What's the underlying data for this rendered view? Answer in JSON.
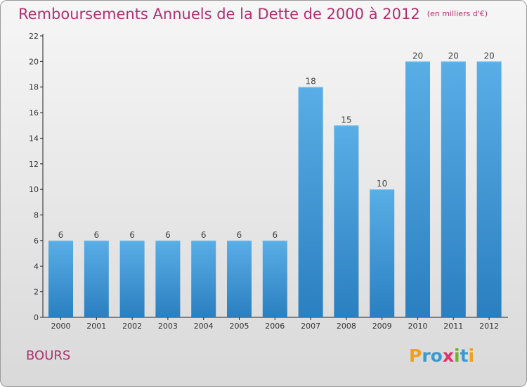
{
  "header": {
    "title": "Remboursements Annuels de la Dette de 2000 à 2012",
    "unit": "(en milliers d'€)"
  },
  "footer": {
    "commune": "BOURS",
    "logo_letters": [
      {
        "char": "P",
        "color": "#f0a020"
      },
      {
        "char": "r",
        "color": "#3a9ad0"
      },
      {
        "char": "o",
        "color": "#3a9ad0"
      },
      {
        "char": "x",
        "color": "#e03070"
      },
      {
        "char": "i",
        "color": "#70b030"
      },
      {
        "char": "t",
        "color": "#3a9ad0"
      },
      {
        "char": "i",
        "color": "#f0a020"
      }
    ]
  },
  "colors": {
    "bar_light": "#5aaee6",
    "bar_dark": "#2a7fc0",
    "title": "#b03070",
    "axis": "#222222"
  },
  "chart_data": {
    "type": "bar",
    "categories": [
      "2000",
      "2001",
      "2002",
      "2003",
      "2004",
      "2005",
      "2006",
      "2007",
      "2008",
      "2009",
      "2010",
      "2011",
      "2012"
    ],
    "values": [
      6,
      6,
      6,
      6,
      6,
      6,
      6,
      18,
      15,
      10,
      20,
      20,
      20
    ],
    "data_labels": [
      "6",
      "6",
      "6",
      "6",
      "6",
      "6",
      "6",
      "18",
      "15",
      "10",
      "20",
      "20",
      "20"
    ],
    "ylim": [
      0,
      22
    ],
    "yticks": [
      "0",
      "2",
      "4",
      "6",
      "8",
      "10",
      "12",
      "14",
      "16",
      "18",
      "20",
      "22"
    ],
    "grid": false,
    "legend": "none"
  }
}
